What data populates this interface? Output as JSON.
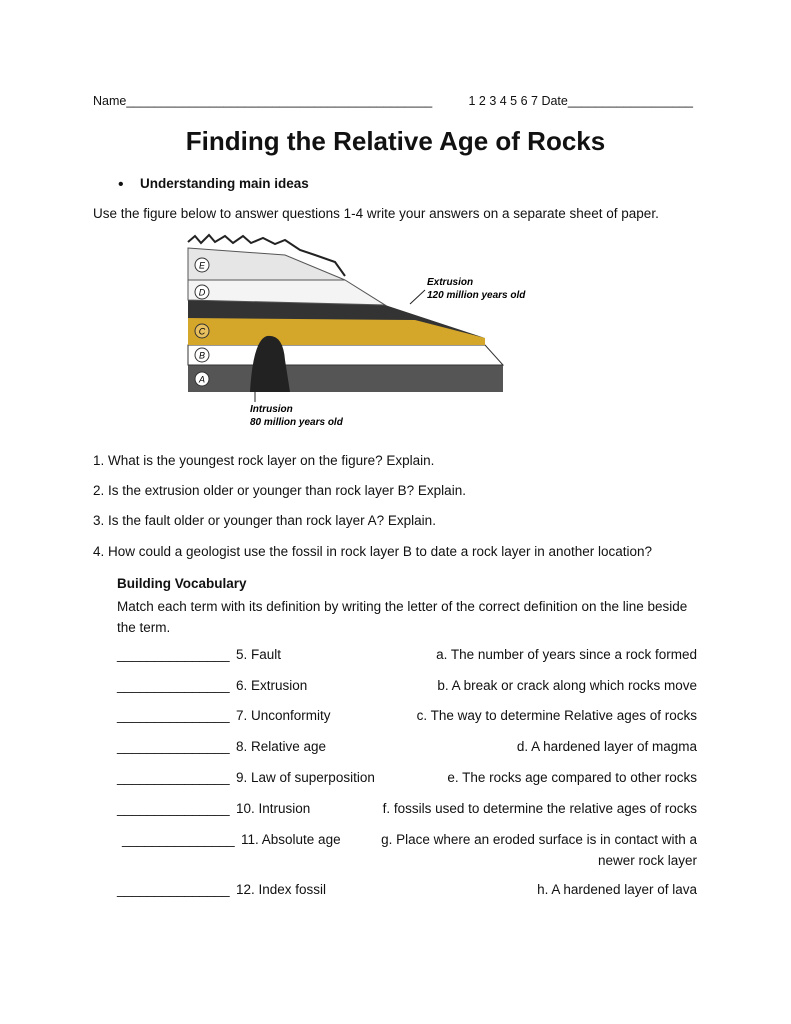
{
  "header": {
    "name": "Name____________________________________________",
    "date": "1 2 3 4 5 6 7 Date__________________"
  },
  "title": "Finding the Relative Age of Rocks",
  "bullet": "Understanding main ideas",
  "instruction": "Use the figure below to answer questions 1-4 write your answers on a separate sheet of paper.",
  "figure": {
    "layers": [
      "E",
      "D",
      "C",
      "B",
      "A"
    ],
    "extrusion": {
      "label": "Extrusion",
      "age": "120 million years old"
    },
    "intrusion": {
      "label": "Intrusion",
      "age": "80 million years old"
    }
  },
  "questions": [
    "1. What is the youngest rock layer on the figure? Explain.",
    "2. Is the extrusion older or younger than rock layer B? Explain.",
    "3. Is the fault older or younger than rock layer A? Explain.",
    "4. How could a geologist use the fossil in rock layer B to date a rock layer in another location?"
  ],
  "vocabulary": {
    "heading": "Building Vocabulary",
    "instructions": "Match each term with its definition by writing the letter of the correct definition on the line beside the term.",
    "items": [
      {
        "blank": "_______________",
        "term": "5. Fault",
        "definition": "a. The number of years since a rock formed"
      },
      {
        "blank": "_______________",
        "term": "6. Extrusion",
        "definition": "b. A break or crack along which rocks move"
      },
      {
        "blank": "_______________",
        "term": "7. Unconformity",
        "definition": "c. The way to determine Relative ages of rocks"
      },
      {
        "blank": "_______________",
        "term": "8. Relative age",
        "definition": "d. A hardened layer of magma"
      },
      {
        "blank": "_______________",
        "term": "9. Law of superposition",
        "definition": "e.  The rocks age compared to other rocks"
      },
      {
        "blank": "_______________",
        "term": "10. Intrusion",
        "definition": "f. fossils used to determine the relative ages of rocks"
      },
      {
        "blank": "_______________",
        "term": "11. Absolute age",
        "definition": "g. Place where an eroded surface is in contact with a newer rock layer"
      },
      {
        "blank": "_______________",
        "term": "12. Index fossil",
        "definition": "h. A hardened layer of lava"
      }
    ]
  }
}
